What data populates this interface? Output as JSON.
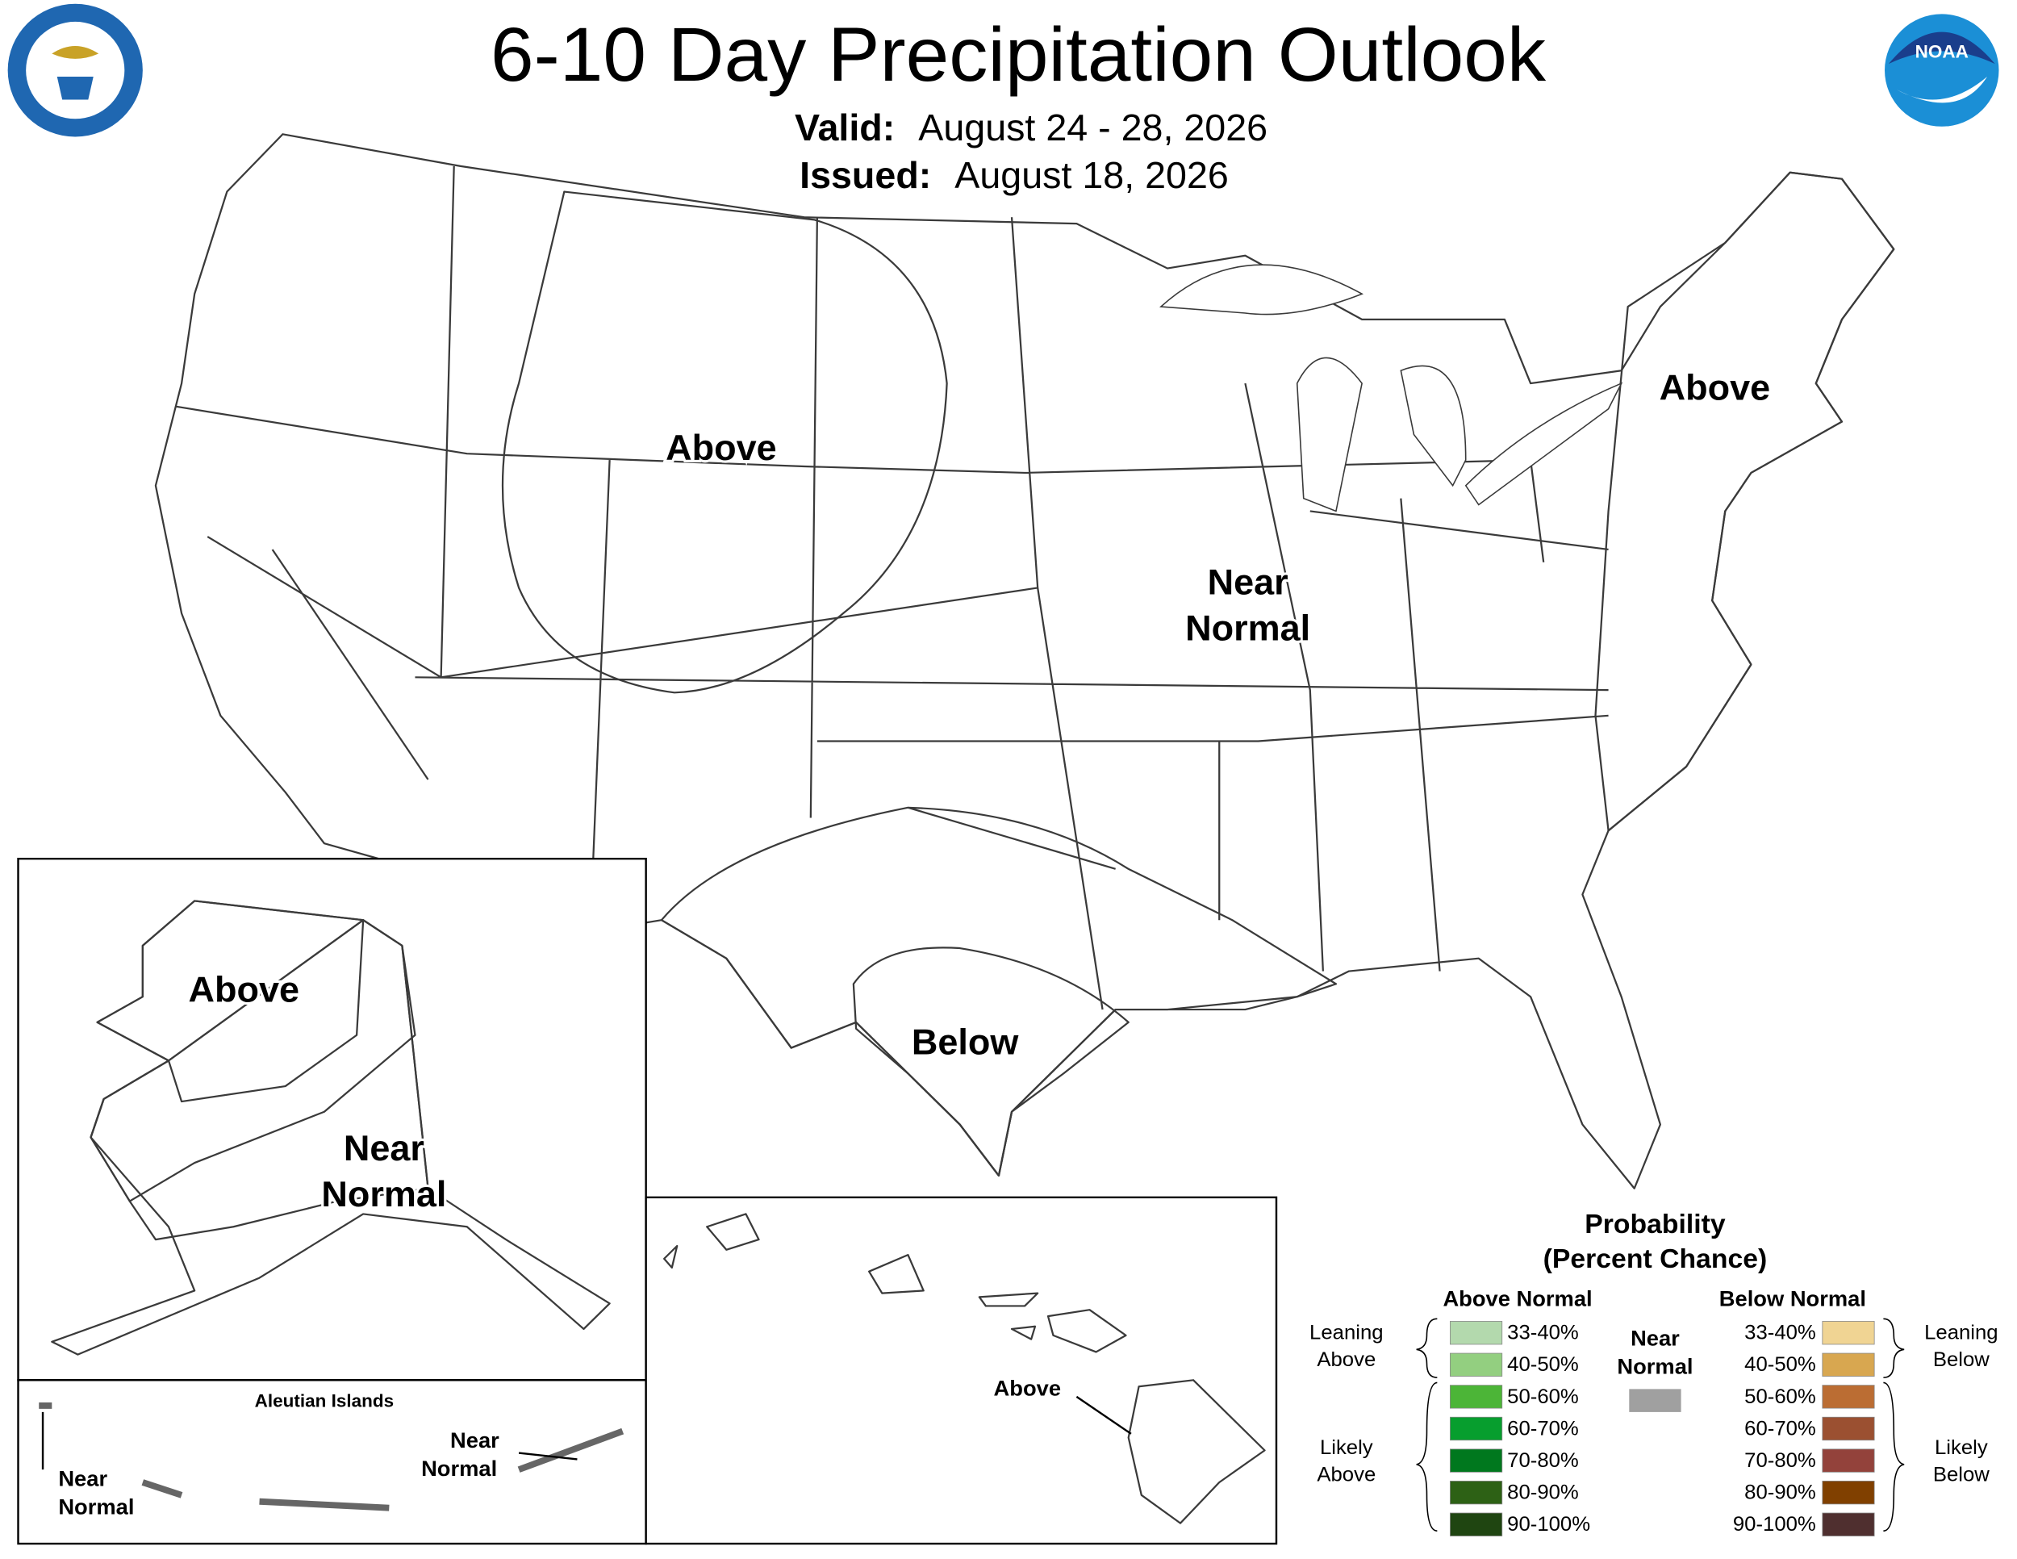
{
  "header": {
    "title": "6-10 Day Precipitation Outlook",
    "valid_label": "Valid:",
    "valid": "August 24 - 28, 2026",
    "issued_label": "Issued:",
    "issued": "August 18, 2026",
    "noaa_logo": "NOAA"
  },
  "map_labels": {
    "west_above": "Above",
    "northeast_above": "Above",
    "central_near": [
      "Near",
      "Normal"
    ],
    "south_below": "Below",
    "alaska_above": "Above",
    "alaska_near": [
      "Near",
      "Normal"
    ],
    "aleutian_title": "Aleutian Islands",
    "aleutian_west": [
      "Near",
      "Normal"
    ],
    "aleutian_east": [
      "Near",
      "Normal"
    ],
    "hawaii_above": "Above"
  },
  "legend": {
    "title": "Probability",
    "subtitle": "(Percent Chance)",
    "above_header": "Above Normal",
    "below_header": "Below Normal",
    "near": [
      "Near",
      "Normal"
    ],
    "near_color": "#a0a0a0",
    "leaning_above": [
      "Leaning",
      "Above"
    ],
    "likely_above": [
      "Likely",
      "Above"
    ],
    "leaning_below": [
      "Leaning",
      "Below"
    ],
    "likely_below": [
      "Likely",
      "Below"
    ],
    "above": [
      {
        "range": "33-40%",
        "color": "#b3d9ad"
      },
      {
        "range": "40-50%",
        "color": "#93cf80"
      },
      {
        "range": "50-60%",
        "color": "#4cb537"
      },
      {
        "range": "60-70%",
        "color": "#079e2e"
      },
      {
        "range": "70-80%",
        "color": "#00781e"
      },
      {
        "range": "80-90%",
        "color": "#2d6115"
      },
      {
        "range": "90-100%",
        "color": "#1f4511"
      }
    ],
    "below": [
      {
        "range": "33-40%",
        "color": "#f0d493"
      },
      {
        "range": "40-50%",
        "color": "#d8a750"
      },
      {
        "range": "50-60%",
        "color": "#bb6d33"
      },
      {
        "range": "60-70%",
        "color": "#9b5031"
      },
      {
        "range": "70-80%",
        "color": "#93423b"
      },
      {
        "range": "80-90%",
        "color": "#804000"
      },
      {
        "range": "90-100%",
        "color": "#4f2f2f"
      }
    ]
  }
}
